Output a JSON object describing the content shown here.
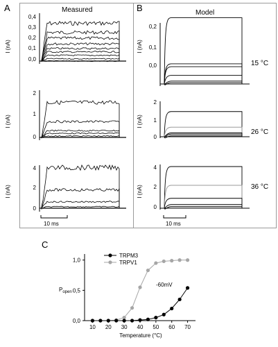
{
  "panel_labels": {
    "a": "A",
    "b": "B",
    "c": "C"
  },
  "headings": {
    "measured": "Measured",
    "model": "Model"
  },
  "current_axis_label": "I (nA)",
  "scale_bar_label": "10 ms",
  "rows": [
    {
      "temperature_label": "15 °C",
      "ticks": [
        "0,4",
        "0,3",
        "0,2",
        "0,1",
        "0,0"
      ],
      "ticks_model": [
        "0,2",
        "0,1",
        "0,0"
      ]
    },
    {
      "temperature_label": "26 °C",
      "ticks": [
        "2",
        "1",
        "0"
      ],
      "ticks_model": [
        "2",
        "1",
        "0"
      ]
    },
    {
      "temperature_label": "36 °C",
      "ticks": [
        "4",
        "2",
        "0"
      ],
      "ticks_model": [
        "4",
        "2",
        "0"
      ]
    }
  ],
  "colors": {
    "trpm3": "#000000",
    "trpv1": "#a6a6a6",
    "frame": "#9a9a9a"
  },
  "chart_data": [
    {
      "type": "line",
      "panel": "A",
      "title": "Measured",
      "ylabel": "I (nA)",
      "row_temperatures": [
        "15 °C",
        "26 °C",
        "36 °C"
      ],
      "ylims": [
        [
          0,
          0.4
        ],
        [
          0,
          2
        ],
        [
          0,
          4
        ]
      ],
      "trace_levels_nA": [
        [
          0.33,
          0.25,
          0.2,
          0.15,
          0.11,
          0.08,
          0.05,
          0.02,
          0.0
        ],
        [
          1.55,
          0.7,
          0.3,
          0.18,
          0.06
        ],
        [
          4.1,
          1.85,
          0.65,
          0.15
        ]
      ]
    },
    {
      "type": "line",
      "panel": "B",
      "title": "Model",
      "ylabel": "I (nA)",
      "row_temperatures": [
        "15 °C",
        "26 °C",
        "36 °C"
      ],
      "ylims": [
        [
          0,
          0.2
        ],
        [
          0,
          2
        ],
        [
          0,
          4
        ]
      ],
      "trace_levels_nA": [
        [
          0.23,
          0.07,
          0.06,
          0.03,
          0.01,
          0.005
        ],
        [
          1.45,
          0.55,
          0.22,
          0.15,
          0.05
        ],
        [
          4.0,
          2.2,
          0.95,
          0.35,
          0.15
        ]
      ]
    },
    {
      "type": "line",
      "panel": "C",
      "xlabel": "Temperature (°C)",
      "ylabel": "P_open",
      "xlim": [
        5,
        75
      ],
      "ylim": [
        0,
        1.1
      ],
      "xticks": [
        "10",
        "20",
        "30",
        "40",
        "50",
        "60",
        "70"
      ],
      "yticks": [
        "0,0",
        "0,5",
        "1,0"
      ],
      "annotation": "-60mV",
      "legend_position": "top-left",
      "x": [
        10,
        15,
        20,
        25,
        30,
        35,
        40,
        45,
        50,
        55,
        60,
        65,
        70
      ],
      "series": [
        {
          "name": "TRPM3",
          "color": "#000000",
          "values": [
            0,
            0,
            0,
            0,
            0,
            0,
            0.01,
            0.02,
            0.05,
            0.1,
            0.2,
            0.35,
            0.54
          ]
        },
        {
          "name": "TRPV1",
          "color": "#a6a6a6",
          "values": [
            0,
            0,
            0,
            0.01,
            0.05,
            0.21,
            0.55,
            0.83,
            0.95,
            0.98,
            0.99,
            1.0,
            1.0
          ]
        }
      ]
    }
  ]
}
